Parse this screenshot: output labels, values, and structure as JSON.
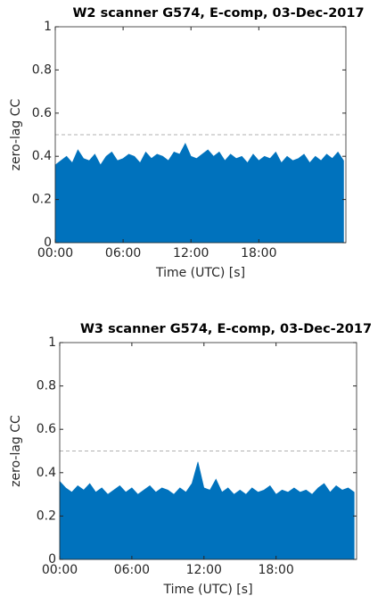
{
  "chart_data": [
    {
      "type": "area",
      "title": "W2 scanner G574, E-comp, 03-Dec-2017",
      "xlabel": "Time (UTC) [s]",
      "ylabel": "zero-lag CC",
      "color": "#0072bd",
      "x": [
        0,
        0.5,
        1,
        1.5,
        2,
        2.5,
        3,
        3.5,
        4,
        4.5,
        5,
        5.5,
        6,
        6.5,
        7,
        7.5,
        8,
        8.5,
        9,
        9.5,
        10,
        10.5,
        11,
        11.5,
        12,
        12.5,
        13,
        13.5,
        14,
        14.5,
        15,
        15.5,
        16,
        16.5,
        17,
        17.5,
        18,
        18.5,
        19,
        19.5,
        20,
        20.5,
        21,
        21.5,
        22,
        22.5,
        23,
        23.5,
        24,
        24.5,
        25,
        25.5
      ],
      "values": [
        0.36,
        0.38,
        0.4,
        0.37,
        0.43,
        0.39,
        0.38,
        0.41,
        0.36,
        0.4,
        0.42,
        0.38,
        0.39,
        0.41,
        0.4,
        0.37,
        0.42,
        0.39,
        0.41,
        0.4,
        0.38,
        0.42,
        0.41,
        0.46,
        0.4,
        0.39,
        0.41,
        0.43,
        0.4,
        0.42,
        0.38,
        0.41,
        0.39,
        0.4,
        0.37,
        0.41,
        0.38,
        0.4,
        0.39,
        0.42,
        0.37,
        0.4,
        0.38,
        0.39,
        0.41,
        0.37,
        0.4,
        0.38,
        0.41,
        0.39,
        0.42,
        0.38
      ],
      "xlim": [
        0,
        25.7
      ],
      "ylim": [
        0,
        1
      ],
      "xticks": [
        {
          "value": 0,
          "label": "00:00"
        },
        {
          "value": 6,
          "label": "06:00"
        },
        {
          "value": 12,
          "label": "12:00"
        },
        {
          "value": 18,
          "label": "18:00"
        }
      ],
      "yticks": [
        0,
        0.2,
        0.4,
        0.6,
        0.8,
        1
      ],
      "threshold": 0.5
    },
    {
      "type": "area",
      "title": "W3 scanner G574, E-comp, 03-Dec-2017",
      "xlabel": "Time (UTC) [s]",
      "ylabel": "zero-lag CC",
      "color": "#0072bd",
      "x": [
        0,
        0.5,
        1,
        1.5,
        2,
        2.5,
        3,
        3.5,
        4,
        4.5,
        5,
        5.5,
        6,
        6.5,
        7,
        7.5,
        8,
        8.5,
        9,
        9.5,
        10,
        10.5,
        11,
        11.5,
        12,
        12.5,
        13,
        13.5,
        14,
        14.5,
        15,
        15.5,
        16,
        16.5,
        17,
        17.5,
        18,
        18.5,
        19,
        19.5,
        20,
        20.5,
        21,
        21.5,
        22,
        22.5,
        23,
        23.5,
        24,
        24.5
      ],
      "values": [
        0.36,
        0.33,
        0.31,
        0.34,
        0.32,
        0.35,
        0.31,
        0.33,
        0.3,
        0.32,
        0.34,
        0.31,
        0.33,
        0.3,
        0.32,
        0.34,
        0.31,
        0.33,
        0.32,
        0.3,
        0.33,
        0.31,
        0.35,
        0.45,
        0.33,
        0.32,
        0.37,
        0.31,
        0.33,
        0.3,
        0.32,
        0.3,
        0.33,
        0.31,
        0.32,
        0.34,
        0.3,
        0.32,
        0.31,
        0.33,
        0.31,
        0.32,
        0.3,
        0.33,
        0.35,
        0.31,
        0.34,
        0.32,
        0.33,
        0.31
      ],
      "xlim": [
        0,
        24.7
      ],
      "ylim": [
        0,
        1
      ],
      "xticks": [
        {
          "value": 0,
          "label": "00:00"
        },
        {
          "value": 6,
          "label": "06:00"
        },
        {
          "value": 12,
          "label": "12:00"
        },
        {
          "value": 18,
          "label": "18:00"
        }
      ],
      "yticks": [
        0,
        0.2,
        0.4,
        0.6,
        0.8,
        1
      ],
      "threshold": 0.5
    }
  ]
}
